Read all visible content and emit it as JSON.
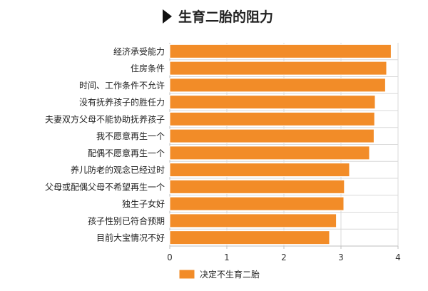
{
  "chart_data": {
    "type": "bar",
    "orientation": "horizontal",
    "title": "生育二胎的阻力",
    "categories": [
      "经济承受能力",
      "住房条件",
      "时间、工作条件不允许",
      "没有抚养孩子的胜任力",
      "夫妻双方父母不能协助抚养孩子",
      "我不愿意再生一个",
      "配偶不愿意再生一个",
      "养儿防老的观念已经过时",
      "父母或配偶父母不希望再生一个",
      "独生子女好",
      "孩子性别已符合预期",
      "目前大宝情况不好"
    ],
    "series": [
      {
        "name": "决定不生育二胎",
        "values": [
          3.88,
          3.8,
          3.78,
          3.6,
          3.59,
          3.58,
          3.5,
          3.15,
          3.06,
          3.05,
          2.92,
          2.8
        ]
      }
    ],
    "xlim": [
      0,
      4
    ],
    "xticks": [
      "0",
      "1",
      "2",
      "3",
      "4"
    ],
    "grid": true,
    "legend_position": "bottom-left",
    "colors": {
      "bar": "#F28C28",
      "bar_edge": "#FFFFFF",
      "grid": "#D9D9D9",
      "axis": "#BFBFBF",
      "title_marker": "#111111"
    }
  }
}
